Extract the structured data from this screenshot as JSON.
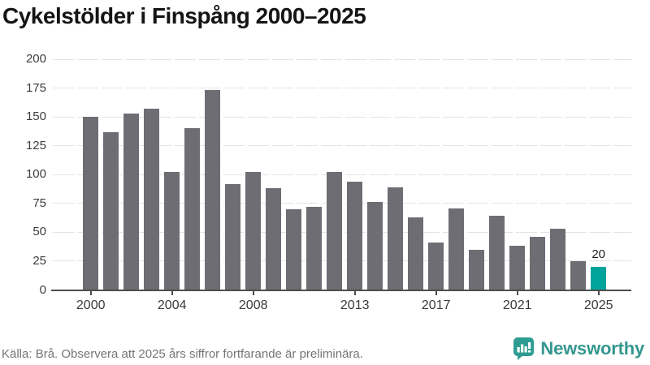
{
  "title": "Cykelstölder i Finspång 2000–2025",
  "chart_data": {
    "type": "bar",
    "title": "Cykelstölder i Finspång 2000–2025",
    "categories": [
      2000,
      2001,
      2002,
      2003,
      2004,
      2005,
      2006,
      2007,
      2008,
      2009,
      2010,
      2011,
      2012,
      2013,
      2014,
      2015,
      2016,
      2017,
      2018,
      2019,
      2020,
      2021,
      2022,
      2023,
      2024,
      2025
    ],
    "values": [
      150,
      137,
      153,
      157,
      102,
      140,
      173,
      92,
      102,
      88,
      70,
      72,
      102,
      94,
      76,
      89,
      63,
      41,
      71,
      35,
      64,
      38,
      46,
      53,
      25,
      20
    ],
    "xlabel": "",
    "ylabel": "",
    "ylim": [
      0,
      200
    ],
    "y_ticks": [
      0,
      25,
      50,
      75,
      100,
      125,
      150,
      175,
      200
    ],
    "x_tick_labels": [
      2000,
      2004,
      2008,
      2013,
      2017,
      2021,
      2025
    ],
    "grid": true,
    "legend": false,
    "bar_color": "#6e6d73",
    "highlight_color": "#00a49a",
    "highlight_category": 2025,
    "data_label": {
      "category": 2025,
      "text": "20"
    }
  },
  "footer": {
    "source": "Källa: Brå. Observera att 2025 års siffror fortfarande är preliminära.",
    "brand": "Newsworthy",
    "brand_color": "#35978f"
  }
}
